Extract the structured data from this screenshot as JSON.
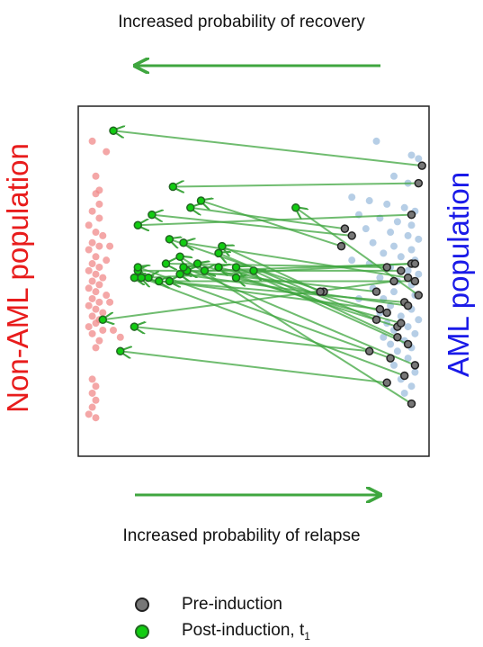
{
  "top_label": "Increased probability of recovery",
  "bottom_label": "Increased probability of relapse",
  "left_label": "Non-AML population",
  "right_label": "AML population",
  "legend": {
    "pre_label": "Pre-induction",
    "post_label": "Post-induction, t",
    "post_subscript": "1"
  },
  "colors": {
    "non_aml": "#f08a8a",
    "aml": "#8fb3d9",
    "pre": "#777777",
    "post": "#11cc11",
    "arrow": "#3fa63f"
  },
  "chart_data": {
    "type": "scatter",
    "title": "",
    "xlabel": "",
    "ylabel": "",
    "xlim": [
      0,
      1
    ],
    "ylim": [
      0,
      1
    ],
    "non_aml_points": [
      [
        0.04,
        0.9
      ],
      [
        0.05,
        0.8
      ],
      [
        0.05,
        0.75
      ],
      [
        0.06,
        0.72
      ],
      [
        0.04,
        0.7
      ],
      [
        0.06,
        0.68
      ],
      [
        0.03,
        0.66
      ],
      [
        0.05,
        0.64
      ],
      [
        0.07,
        0.63
      ],
      [
        0.04,
        0.61
      ],
      [
        0.06,
        0.6
      ],
      [
        0.03,
        0.59
      ],
      [
        0.05,
        0.57
      ],
      [
        0.08,
        0.56
      ],
      [
        0.04,
        0.55
      ],
      [
        0.06,
        0.54
      ],
      [
        0.03,
        0.53
      ],
      [
        0.05,
        0.52
      ],
      [
        0.07,
        0.51
      ],
      [
        0.04,
        0.5
      ],
      [
        0.06,
        0.49
      ],
      [
        0.03,
        0.48
      ],
      [
        0.05,
        0.47
      ],
      [
        0.08,
        0.46
      ],
      [
        0.04,
        0.45
      ],
      [
        0.06,
        0.44
      ],
      [
        0.03,
        0.43
      ],
      [
        0.05,
        0.42
      ],
      [
        0.07,
        0.41
      ],
      [
        0.04,
        0.4
      ],
      [
        0.06,
        0.39
      ],
      [
        0.05,
        0.38
      ],
      [
        0.03,
        0.37
      ],
      [
        0.07,
        0.36
      ],
      [
        0.04,
        0.35
      ],
      [
        0.06,
        0.33
      ],
      [
        0.1,
        0.36
      ],
      [
        0.12,
        0.34
      ],
      [
        0.05,
        0.31
      ],
      [
        0.04,
        0.22
      ],
      [
        0.05,
        0.2
      ],
      [
        0.04,
        0.18
      ],
      [
        0.05,
        0.16
      ],
      [
        0.04,
        0.14
      ],
      [
        0.03,
        0.12
      ],
      [
        0.05,
        0.11
      ],
      [
        0.08,
        0.87
      ],
      [
        0.06,
        0.76
      ],
      [
        0.09,
        0.6
      ],
      [
        0.09,
        0.44
      ]
    ],
    "aml_points": [
      [
        0.85,
        0.9
      ],
      [
        0.95,
        0.86
      ],
      [
        0.9,
        0.8
      ],
      [
        0.94,
        0.78
      ],
      [
        0.78,
        0.74
      ],
      [
        0.83,
        0.73
      ],
      [
        0.88,
        0.72
      ],
      [
        0.93,
        0.71
      ],
      [
        0.96,
        0.7
      ],
      [
        0.8,
        0.69
      ],
      [
        0.86,
        0.68
      ],
      [
        0.91,
        0.67
      ],
      [
        0.95,
        0.66
      ],
      [
        0.82,
        0.65
      ],
      [
        0.89,
        0.64
      ],
      [
        0.94,
        0.63
      ],
      [
        0.97,
        0.62
      ],
      [
        0.84,
        0.61
      ],
      [
        0.9,
        0.6
      ],
      [
        0.95,
        0.59
      ],
      [
        0.87,
        0.58
      ],
      [
        0.92,
        0.57
      ],
      [
        0.96,
        0.56
      ],
      [
        0.83,
        0.55
      ],
      [
        0.89,
        0.54
      ],
      [
        0.94,
        0.53
      ],
      [
        0.97,
        0.52
      ],
      [
        0.86,
        0.51
      ],
      [
        0.91,
        0.5
      ],
      [
        0.95,
        0.49
      ],
      [
        0.84,
        0.48
      ],
      [
        0.9,
        0.47
      ],
      [
        0.96,
        0.46
      ],
      [
        0.87,
        0.45
      ],
      [
        0.93,
        0.44
      ],
      [
        0.89,
        0.43
      ],
      [
        0.95,
        0.42
      ],
      [
        0.86,
        0.41
      ],
      [
        0.92,
        0.4
      ],
      [
        0.97,
        0.39
      ],
      [
        0.88,
        0.38
      ],
      [
        0.94,
        0.37
      ],
      [
        0.9,
        0.36
      ],
      [
        0.96,
        0.35
      ],
      [
        0.87,
        0.34
      ],
      [
        0.93,
        0.33
      ],
      [
        0.89,
        0.32
      ],
      [
        0.95,
        0.31
      ],
      [
        0.91,
        0.3
      ],
      [
        0.94,
        0.28
      ],
      [
        0.9,
        0.26
      ],
      [
        0.96,
        0.24
      ],
      [
        0.92,
        0.22
      ],
      [
        0.95,
        0.2
      ],
      [
        0.93,
        0.18
      ],
      [
        0.78,
        0.56
      ],
      [
        0.8,
        0.45
      ],
      [
        0.97,
        0.85
      ]
    ],
    "patients": [
      {
        "pre": [
          0.98,
          0.83
        ],
        "post": [
          0.1,
          0.93
        ]
      },
      {
        "pre": [
          0.97,
          0.78
        ],
        "post": [
          0.27,
          0.77
        ]
      },
      {
        "pre": [
          0.78,
          0.63
        ],
        "post": [
          0.21,
          0.69
        ]
      },
      {
        "pre": [
          0.76,
          0.65
        ],
        "post": [
          0.32,
          0.71
        ]
      },
      {
        "pre": [
          0.75,
          0.6
        ],
        "post": [
          0.35,
          0.73
        ]
      },
      {
        "pre": [
          0.95,
          0.69
        ],
        "post": [
          0.17,
          0.66
        ]
      },
      {
        "pre": [
          0.88,
          0.54
        ],
        "post": [
          0.25,
          0.55
        ]
      },
      {
        "pre": [
          0.9,
          0.5
        ],
        "post": [
          0.07,
          0.39
        ]
      },
      {
        "pre": [
          0.92,
          0.53
        ],
        "post": [
          0.17,
          0.53
        ]
      },
      {
        "pre": [
          0.95,
          0.55
        ],
        "post": [
          0.2,
          0.51
        ]
      },
      {
        "pre": [
          0.96,
          0.5
        ],
        "post": [
          0.26,
          0.5
        ]
      },
      {
        "pre": [
          0.85,
          0.47
        ],
        "post": [
          0.31,
          0.53
        ]
      },
      {
        "pre": [
          0.93,
          0.44
        ],
        "post": [
          0.23,
          0.5
        ]
      },
      {
        "pre": [
          0.88,
          0.41
        ],
        "post": [
          0.4,
          0.54
        ]
      },
      {
        "pre": [
          0.91,
          0.37
        ],
        "post": [
          0.34,
          0.55
        ]
      },
      {
        "pre": [
          0.83,
          0.3
        ],
        "post": [
          0.16,
          0.37
        ]
      },
      {
        "pre": [
          0.89,
          0.28
        ],
        "post": [
          0.17,
          0.54
        ]
      },
      {
        "pre": [
          0.94,
          0.32
        ],
        "post": [
          0.45,
          0.54
        ]
      },
      {
        "pre": [
          0.96,
          0.26
        ],
        "post": [
          0.3,
          0.54
        ]
      },
      {
        "pre": [
          0.95,
          0.15
        ],
        "post": [
          0.29,
          0.57
        ]
      },
      {
        "pre": [
          0.7,
          0.47
        ],
        "post": [
          0.26,
          0.62
        ]
      },
      {
        "pre": [
          0.69,
          0.47
        ],
        "post": [
          0.41,
          0.6
        ]
      },
      {
        "pre": [
          0.96,
          0.55
        ],
        "post": [
          0.36,
          0.53
        ]
      },
      {
        "pre": [
          0.86,
          0.42
        ],
        "post": [
          0.16,
          0.51
        ]
      },
      {
        "pre": [
          0.94,
          0.51
        ],
        "post": [
          0.3,
          0.61
        ]
      },
      {
        "pre": [
          0.97,
          0.46
        ],
        "post": [
          0.62,
          0.71
        ]
      },
      {
        "pre": [
          0.85,
          0.39
        ],
        "post": [
          0.4,
          0.58
        ]
      },
      {
        "pre": [
          0.92,
          0.38
        ],
        "post": [
          0.45,
          0.51
        ]
      },
      {
        "pre": [
          0.91,
          0.34
        ],
        "post": [
          0.5,
          0.53
        ]
      },
      {
        "pre": [
          0.93,
          0.23
        ],
        "post": [
          0.18,
          0.51
        ]
      },
      {
        "pre": [
          0.88,
          0.21
        ],
        "post": [
          0.12,
          0.3
        ]
      },
      {
        "pre": [
          0.94,
          0.43
        ],
        "post": [
          0.29,
          0.52
        ]
      }
    ]
  }
}
